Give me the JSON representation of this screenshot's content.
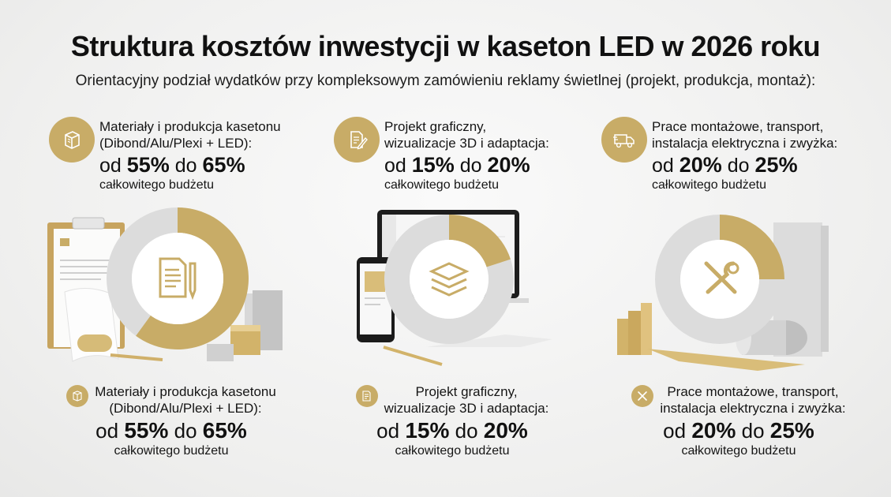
{
  "title": "Struktura kosztów inwestycji w kaseton LED w 2026 roku",
  "subtitle": "Orientacyjny podział wydatków przy kompleksowym zamówieniu reklamy świetlnej (projekt, produkcja, montaż):",
  "labels": {
    "from": "od",
    "to": "do",
    "budget": "całkowitego budżetu"
  },
  "colors": {
    "gold": "#c8ac67",
    "silver": "#dcdcdc",
    "white": "#ffffff"
  },
  "chart_data": {
    "type": "pie",
    "variant": "donut",
    "items": [
      {
        "label_line1": "Materiały i produkcja kasetonu",
        "label_line2": "(Dibond/Alu/Plexi + LED):",
        "min": "55%",
        "max": "65%",
        "value": 60,
        "icon": "document-pencil-icon",
        "badge_icon": "box-icon"
      },
      {
        "label_line1": "Projekt graficzny,",
        "label_line2": "wizualizacje 3D i adaptacja:",
        "min": "15%",
        "max": "20%",
        "value": 20,
        "icon": "layers-icon",
        "badge_icon": "document-pencil-icon"
      },
      {
        "label_line1": "Prace montażowe, transport,",
        "label_line2": "instalacja elektryczna i zwyżka:",
        "min": "20%",
        "max": "25%",
        "value": 25,
        "icon": "tools-icon",
        "badge_icon": "truck-icon"
      }
    ]
  }
}
